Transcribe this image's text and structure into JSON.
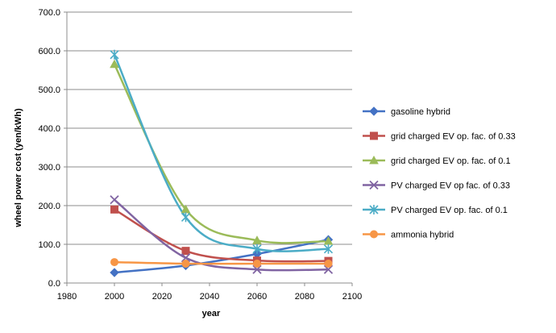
{
  "chart_data": {
    "type": "scatter",
    "title": "",
    "xlabel": "year",
    "ylabel": "wheel power cost (yen/kWh)",
    "xlim": [
      1980,
      2100
    ],
    "ylim": [
      0,
      700
    ],
    "xticks": [
      1980,
      2000,
      2020,
      2040,
      2060,
      2080,
      2100
    ],
    "yticks": [
      0,
      100,
      200,
      300,
      400,
      500,
      600,
      700
    ],
    "ytick_format": "0.0",
    "grid": "horizontal major gridlines",
    "legend_position": "right",
    "smoothed_lines": true,
    "series": [
      {
        "name": "gasoline hybrid",
        "color": "#4472C4",
        "marker": "diamond",
        "x": [
          2000,
          2030,
          2060,
          2090
        ],
        "y": [
          27,
          45,
          75,
          112
        ]
      },
      {
        "name": "grid charged EV op. fac. of 0.33",
        "color": "#C0504D",
        "marker": "square",
        "x": [
          2000,
          2030,
          2060,
          2090
        ],
        "y": [
          190,
          83,
          58,
          57
        ]
      },
      {
        "name": "grid charged EV op. fac. of 0.1",
        "color": "#9BBB59",
        "marker": "triangle",
        "x": [
          2000,
          2030,
          2060,
          2090
        ],
        "y": [
          565,
          190,
          110,
          108
        ]
      },
      {
        "name": "PV charged EV op fac. of 0.33",
        "color": "#8064A2",
        "marker": "x",
        "x": [
          2000,
          2030,
          2060,
          2090
        ],
        "y": [
          215,
          65,
          35,
          35
        ]
      },
      {
        "name": "PV charged EV op. fac. of 0.1",
        "color": "#4BACC6",
        "marker": "star",
        "x": [
          2000,
          2030,
          2060,
          2090
        ],
        "y": [
          590,
          170,
          88,
          88
        ]
      },
      {
        "name": "ammonia hybrid",
        "color": "#F79646",
        "marker": "circle",
        "x": [
          2000,
          2030,
          2060,
          2090
        ],
        "y": [
          54,
          50,
          50,
          50
        ]
      }
    ]
  }
}
